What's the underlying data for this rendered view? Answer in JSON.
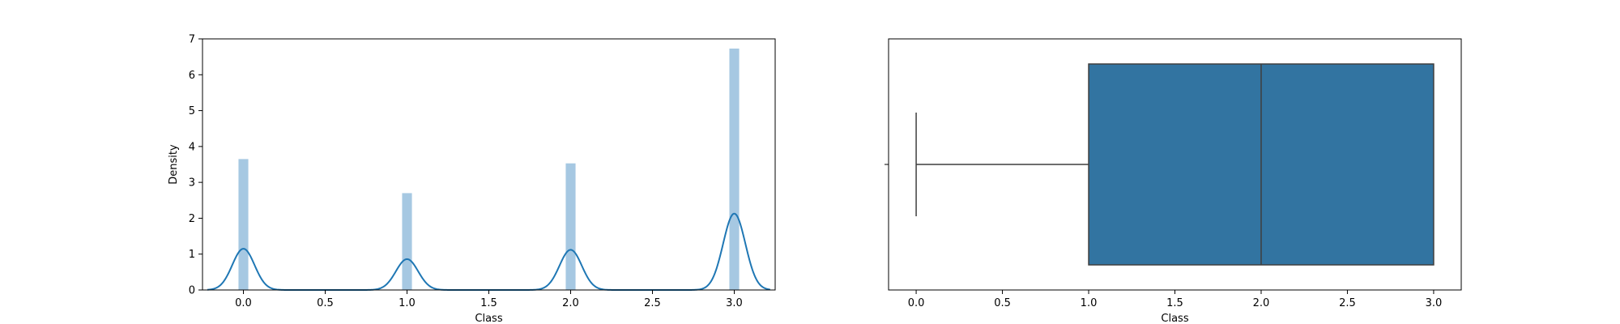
{
  "chart_data": [
    {
      "type": "bar",
      "subtype": "histogram-with-kde",
      "xlabel": "Class",
      "ylabel": "Density",
      "xlim": [
        -0.25,
        3.25
      ],
      "ylim": [
        0,
        7
      ],
      "xticks": [
        "0.0",
        "0.5",
        "1.0",
        "1.5",
        "2.0",
        "2.5",
        "3.0"
      ],
      "yticks": [
        "0",
        "1",
        "2",
        "3",
        "4",
        "5",
        "6",
        "7"
      ],
      "grid": false,
      "bin_width": 0.06,
      "bars": [
        {
          "x": 0,
          "value": 3.65
        },
        {
          "x": 1,
          "value": 2.7
        },
        {
          "x": 2,
          "value": 3.53
        },
        {
          "x": 3,
          "value": 6.73
        }
      ],
      "kde_peaks": [
        {
          "x": 0,
          "value": 1.15
        },
        {
          "x": 1,
          "value": 0.86
        },
        {
          "x": 2,
          "value": 1.12
        },
        {
          "x": 3,
          "value": 2.13
        }
      ],
      "kde_bandwidth": 0.068,
      "kde_range": [
        -0.22,
        3.22
      ],
      "colors": {
        "bars": "#a6c8e2",
        "kde": "#1f77b4"
      }
    },
    {
      "type": "boxplot",
      "xlabel": "Class",
      "xlim": [
        -0.16,
        3.16
      ],
      "xticks": [
        "0.0",
        "0.5",
        "1.0",
        "1.5",
        "2.0",
        "2.5",
        "3.0"
      ],
      "grid": false,
      "whisker_low": 0,
      "q1": 1,
      "median": 2,
      "q3": 3,
      "whisker_high": 3,
      "colors": {
        "box": "#3274a1",
        "line": "#3f3f3f"
      }
    }
  ]
}
